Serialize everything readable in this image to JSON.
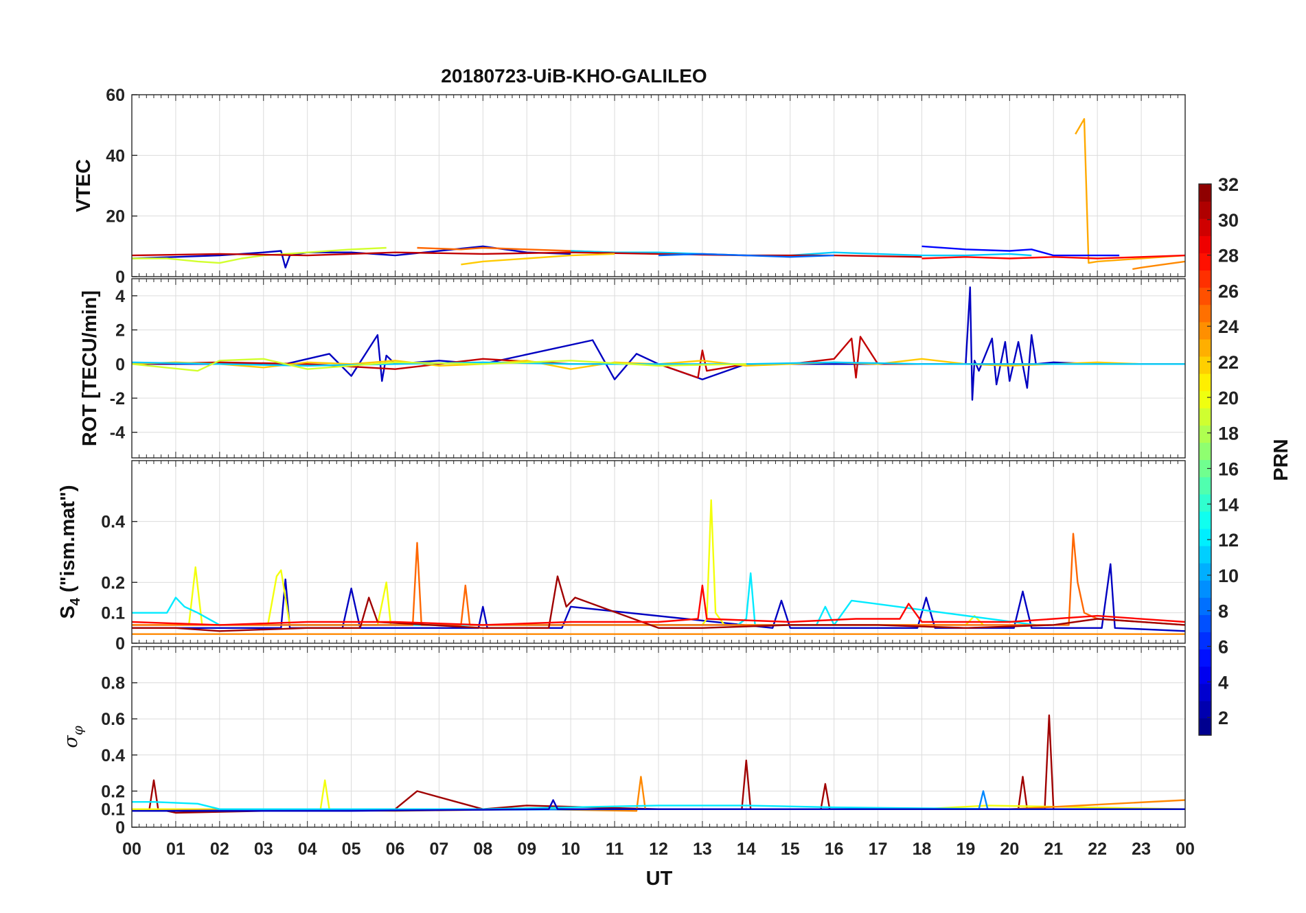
{
  "chart_data": {
    "type": "line",
    "title": "20180723-UiB-KHO-GALILEO",
    "xlabel": "UT",
    "xlim": [
      0,
      24
    ],
    "xticks": [
      "00",
      "01",
      "02",
      "03",
      "04",
      "05",
      "06",
      "07",
      "08",
      "09",
      "10",
      "11",
      "12",
      "13",
      "14",
      "15",
      "16",
      "17",
      "18",
      "19",
      "20",
      "21",
      "22",
      "23",
      "00"
    ],
    "colorbar": {
      "label": "PRN",
      "range": [
        1,
        32
      ],
      "ticks": [
        "2",
        "4",
        "6",
        "8",
        "10",
        "12",
        "14",
        "16",
        "18",
        "20",
        "22",
        "24",
        "26",
        "28",
        "30",
        "32"
      ],
      "colormap": "jet"
    },
    "panels": [
      {
        "name": "vtec",
        "ylabel": "VTEC",
        "ylim": [
          0,
          60
        ],
        "yticks": [
          "0",
          "20",
          "40",
          "60"
        ],
        "series": [
          {
            "prn": 3,
            "x": [
              0,
              1,
              2,
              3,
              3.4,
              3.5,
              3.6,
              4,
              5,
              6,
              7,
              8,
              9,
              10
            ],
            "y": [
              6,
              6.5,
              7,
              8,
              8.5,
              3,
              7,
              8,
              8,
              7,
              8.5,
              10,
              8,
              7.5
            ]
          },
          {
            "prn": 19,
            "x": [
              0,
              0.8,
              1.5,
              2,
              2.5,
              3,
              4,
              5,
              5.8
            ],
            "y": [
              6,
              6,
              5,
              4.5,
              6,
              7,
              8,
              9,
              9.5
            ]
          },
          {
            "prn": 25,
            "x": [
              6.5,
              7.5,
              8,
              9,
              10,
              11,
              12,
              13,
              14
            ],
            "y": [
              9.5,
              9,
              9.5,
              9,
              8.5,
              8,
              7.5,
              7.5,
              7
            ]
          },
          {
            "prn": 11,
            "x": [
              10,
              11,
              12,
              13,
              14,
              15,
              16,
              17,
              18,
              19,
              20,
              20.5
            ],
            "y": [
              8.5,
              8,
              8,
              7.5,
              7,
              7,
              8,
              7.5,
              7,
              7,
              7.5,
              7
            ]
          },
          {
            "prn": 23,
            "x": [
              21.5,
              21.7,
              21.8,
              22,
              23,
              24
            ],
            "y": [
              47,
              52,
              4.5,
              5,
              6,
              7
            ]
          },
          {
            "prn": 5,
            "x": [
              18,
              19,
              20,
              20.5,
              21,
              22,
              22.5
            ],
            "y": [
              10,
              9,
              8.5,
              9,
              7,
              7,
              7
            ]
          },
          {
            "prn": 28,
            "x": [
              18,
              19,
              20,
              21,
              22,
              23,
              24
            ],
            "y": [
              6,
              6.5,
              6,
              6.5,
              6,
              6.5,
              7
            ]
          },
          {
            "prn": 30,
            "x": [
              0,
              2,
              4,
              6,
              8,
              10,
              12,
              14,
              16,
              18
            ],
            "y": [
              7,
              7.5,
              7,
              8,
              7.5,
              8,
              7.5,
              7,
              7,
              6.5
            ]
          },
          {
            "prn": 22,
            "x": [
              7.5,
              8,
              9,
              10,
              11
            ],
            "y": [
              4,
              5,
              6,
              7,
              7.5
            ]
          },
          {
            "prn": 24,
            "x": [
              22.8,
              23,
              23.5,
              24
            ],
            "y": [
              2.5,
              3,
              4,
              5
            ]
          },
          {
            "prn": 8,
            "x": [
              12,
              13,
              14,
              15,
              16
            ],
            "y": [
              7,
              7.5,
              7,
              6.5,
              7
            ]
          }
        ]
      },
      {
        "name": "rot",
        "ylabel": "ROT [TECU/min]",
        "ylim": [
          -5.5,
          5
        ],
        "yticks": [
          "4",
          "2",
          "0",
          "-2",
          "-4"
        ],
        "series": [
          {
            "prn": 3,
            "x": [
              0,
              3.5,
              4.5,
              5.0,
              5.6,
              5.7,
              5.8,
              6.0,
              7.0,
              8.0,
              10.5,
              11.0,
              11.5,
              12.0,
              13.0,
              14.0,
              18.0,
              19.0,
              19.1,
              19.15,
              19.2,
              19.3,
              19.6,
              19.7,
              19.9,
              20.0,
              20.2,
              20.4,
              20.5,
              20.6,
              21.0,
              22.0,
              24.0
            ],
            "y": [
              0,
              0,
              0.6,
              -0.7,
              1.7,
              -1.0,
              0.5,
              0,
              0.2,
              0,
              1.4,
              -0.9,
              0.6,
              0,
              -0.9,
              0,
              0,
              0,
              4.5,
              -2.1,
              0.2,
              -0.4,
              1.5,
              -1.2,
              1.3,
              -1.0,
              1.3,
              -1.4,
              1.7,
              0,
              0.1,
              0,
              0
            ]
          },
          {
            "prn": 30,
            "x": [
              0,
              2,
              4,
              6,
              8,
              10,
              12,
              12.9,
              13.0,
              13.1,
              14,
              15,
              16,
              16.4,
              16.5,
              16.6,
              17,
              18,
              20,
              22,
              24
            ],
            "y": [
              0,
              0.1,
              0,
              -0.3,
              0.3,
              0,
              0,
              -0.8,
              0.8,
              -0.4,
              0,
              0,
              0.3,
              1.5,
              -0.8,
              1.6,
              0,
              0,
              0,
              0,
              0
            ]
          },
          {
            "prn": 22,
            "x": [
              0,
              1,
              2,
              3,
              4,
              5,
              6,
              7,
              8,
              9,
              10,
              11,
              12,
              13,
              14,
              15,
              16,
              17,
              18,
              19,
              20,
              21,
              22,
              23,
              24
            ],
            "y": [
              0,
              0.1,
              0,
              -0.2,
              0.1,
              0,
              0.2,
              -0.1,
              0,
              0.2,
              -0.3,
              0.1,
              0,
              0.2,
              -0.1,
              0,
              0.1,
              0,
              0.3,
              0,
              -0.1,
              0,
              0.1,
              0,
              0
            ]
          },
          {
            "prn": 11,
            "x": [
              0,
              2,
              4,
              6,
              8,
              10,
              12,
              14,
              16,
              18,
              20,
              22,
              24
            ],
            "y": [
              0.1,
              0,
              -0.1,
              0,
              0.1,
              0,
              0,
              0,
              0.1,
              0,
              0,
              0,
              0
            ]
          },
          {
            "prn": 19,
            "x": [
              0,
              1.5,
              2,
              3,
              4,
              6,
              8,
              10,
              12,
              14
            ],
            "y": [
              0,
              -0.4,
              0.2,
              0.3,
              -0.3,
              0.1,
              0,
              0.2,
              -0.1,
              0
            ]
          }
        ]
      },
      {
        "name": "s4",
        "ylabel": "S4 (\"ism.mat\")",
        "ylim": [
          0,
          0.6
        ],
        "yticks": [
          "0",
          "0.1",
          "0.2",
          "0.4"
        ],
        "series": [
          {
            "prn": 3,
            "x": [
              0,
              3.4,
              3.5,
              3.6,
              4.8,
              5.0,
              5.2,
              7.9,
              8.0,
              8.1,
              9.8,
              10.0,
              14.6,
              14.8,
              15.0,
              17.9,
              18.1,
              18.3,
              20.1,
              20.3,
              20.5,
              22.1,
              22.3,
              22.4,
              24
            ],
            "y": [
              0.05,
              0.05,
              0.21,
              0.05,
              0.05,
              0.18,
              0.05,
              0.05,
              0.12,
              0.05,
              0.05,
              0.12,
              0.05,
              0.14,
              0.05,
              0.05,
              0.15,
              0.05,
              0.05,
              0.17,
              0.05,
              0.05,
              0.26,
              0.05,
              0.04
            ]
          },
          {
            "prn": 20,
            "x": [
              0,
              1.3,
              1.45,
              1.6,
              3.1,
              3.3,
              3.4,
              3.6,
              5.6,
              5.8,
              5.9,
              13.0,
              13.1,
              13.2,
              13.3,
              13.5,
              19.0,
              19.2,
              19.4
            ],
            "y": [
              0.06,
              0.06,
              0.25,
              0.06,
              0.06,
              0.22,
              0.24,
              0.06,
              0.06,
              0.2,
              0.06,
              0.06,
              0.08,
              0.47,
              0.1,
              0.06,
              0.06,
              0.09,
              0.06
            ]
          },
          {
            "prn": 12,
            "x": [
              0,
              0.8,
              1.0,
              1.2,
              1.5,
              2,
              13.8,
              14.0,
              14.1,
              14.2,
              15.6,
              15.8,
              16.0,
              16.4,
              20.6
            ],
            "y": [
              0.1,
              0.1,
              0.15,
              0.12,
              0.1,
              0.06,
              0.06,
              0.08,
              0.23,
              0.06,
              0.06,
              0.12,
              0.06,
              0.14,
              0.06
            ]
          },
          {
            "prn": 25,
            "x": [
              0,
              6.4,
              6.5,
              6.6,
              7.5,
              7.6,
              7.7,
              14,
              21.35,
              21.45,
              21.55,
              21.7,
              22,
              24
            ],
            "y": [
              0.06,
              0.06,
              0.33,
              0.06,
              0.06,
              0.19,
              0.06,
              0.06,
              0.06,
              0.36,
              0.2,
              0.1,
              0.08,
              0.06
            ]
          },
          {
            "prn": 31,
            "x": [
              0,
              1,
              2,
              4,
              5.2,
              5.4,
              5.6,
              8,
              9.5,
              9.7,
              9.9,
              10.1,
              12,
              13,
              15,
              17,
              19,
              21,
              22,
              24
            ],
            "y": [
              0.05,
              0.05,
              0.04,
              0.05,
              0.05,
              0.15,
              0.07,
              0.05,
              0.05,
              0.22,
              0.12,
              0.15,
              0.05,
              0.05,
              0.06,
              0.06,
              0.05,
              0.06,
              0.08,
              0.06
            ]
          },
          {
            "prn": 28,
            "x": [
              0,
              2,
              4,
              6,
              8,
              10,
              12,
              12.9,
              13.0,
              13.1,
              15,
              16.5,
              17.5,
              17.7,
              18,
              20,
              22,
              24
            ],
            "y": [
              0.07,
              0.06,
              0.07,
              0.07,
              0.06,
              0.07,
              0.07,
              0.08,
              0.19,
              0.08,
              0.07,
              0.08,
              0.08,
              0.13,
              0.07,
              0.07,
              0.09,
              0.07
            ]
          },
          {
            "prn": 24,
            "x": [
              0,
              3,
              6,
              9,
              12,
              15,
              18,
              21,
              24
            ],
            "y": [
              0.03,
              0.03,
              0.03,
              0.03,
              0.03,
              0.03,
              0.03,
              0.03,
              0.03
            ]
          }
        ]
      },
      {
        "name": "sigma-phi",
        "ylabel": "σφ",
        "ylim": [
          0,
          1
        ],
        "yticks": [
          "0",
          "0.1",
          "0.2",
          "0.4",
          "0.6",
          "0.8"
        ],
        "series": [
          {
            "prn": 31,
            "x": [
              0,
              0.4,
              0.5,
              0.6,
              1,
              3,
              6,
              6.5,
              8,
              9,
              12,
              13.9,
              14.0,
              14.1,
              15,
              15.7,
              15.8,
              15.9,
              18,
              20.2,
              20.3,
              20.4,
              20.8,
              20.9,
              21.0,
              22,
              24
            ],
            "y": [
              0.1,
              0.1,
              0.26,
              0.1,
              0.08,
              0.09,
              0.1,
              0.2,
              0.1,
              0.12,
              0.1,
              0.1,
              0.37,
              0.1,
              0.1,
              0.1,
              0.24,
              0.1,
              0.1,
              0.1,
              0.28,
              0.1,
              0.1,
              0.62,
              0.1,
              0.1,
              0.1
            ]
          },
          {
            "prn": 20,
            "x": [
              0,
              4.3,
              4.4,
              4.5,
              6,
              12,
              18,
              19.5,
              24
            ],
            "y": [
              0.1,
              0.1,
              0.26,
              0.1,
              0.1,
              0.1,
              0.1,
              0.12,
              0.1
            ]
          },
          {
            "prn": 24,
            "x": [
              0,
              3,
              6,
              9,
              11.5,
              11.6,
              11.7,
              14,
              17,
              20,
              24
            ],
            "y": [
              0.09,
              0.1,
              0.09,
              0.1,
              0.09,
              0.28,
              0.1,
              0.1,
              0.1,
              0.1,
              0.15
            ]
          },
          {
            "prn": 12,
            "x": [
              0,
              0.5,
              1.5,
              2,
              8,
              12,
              14,
              16,
              20,
              24
            ],
            "y": [
              0.14,
              0.14,
              0.13,
              0.1,
              0.1,
              0.12,
              0.12,
              0.11,
              0.1,
              0.1
            ]
          },
          {
            "prn": 9,
            "x": [
              0,
              12,
              19.3,
              19.4,
              19.5,
              24
            ],
            "y": [
              0.09,
              0.1,
              0.1,
              0.2,
              0.1,
              0.1
            ]
          },
          {
            "prn": 3,
            "x": [
              0,
              5,
              9.5,
              9.6,
              9.7,
              12,
              20,
              24
            ],
            "y": [
              0.09,
              0.09,
              0.1,
              0.15,
              0.1,
              0.1,
              0.1,
              0.1
            ]
          }
        ]
      }
    ]
  }
}
